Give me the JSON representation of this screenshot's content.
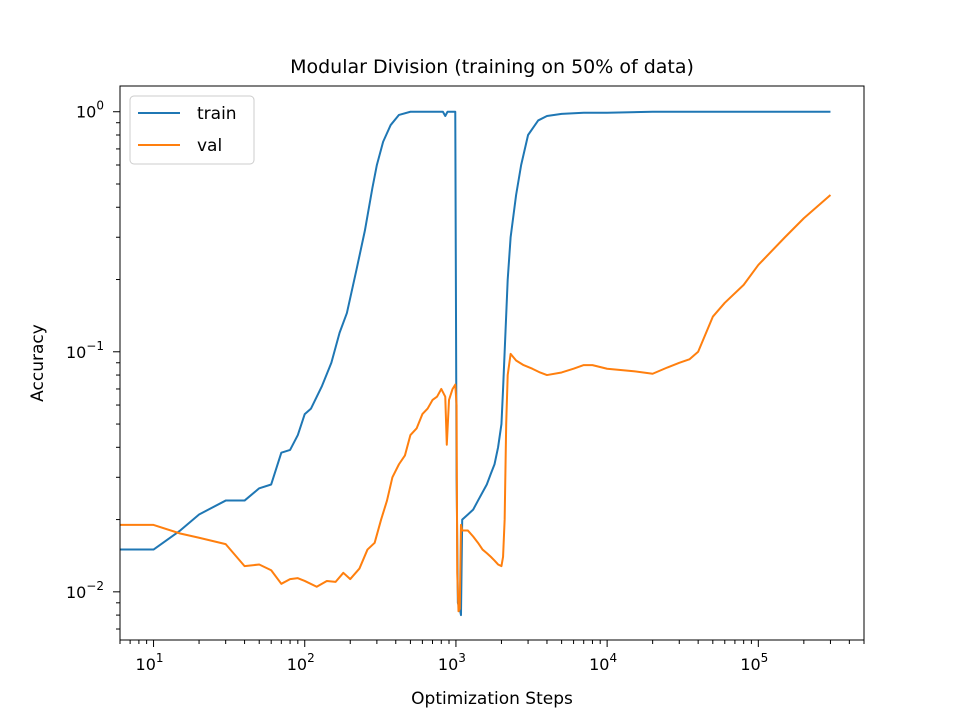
{
  "chart_data": {
    "type": "line",
    "title": "Modular Division (training on 50% of data)",
    "xlabel": "Optimization Steps",
    "ylabel": "Accuracy",
    "xscale": "log",
    "yscale": "log",
    "xlim": [
      6,
      500000
    ],
    "ylim": [
      0.0063,
      1.28
    ],
    "grid": false,
    "legend_position": "top-left",
    "x_ticks": [
      {
        "value": 10,
        "base": "10",
        "exp": "1"
      },
      {
        "value": 100,
        "base": "10",
        "exp": "2"
      },
      {
        "value": 1000,
        "base": "10",
        "exp": "3"
      },
      {
        "value": 10000,
        "base": "10",
        "exp": "4"
      },
      {
        "value": 100000,
        "base": "10",
        "exp": "5"
      }
    ],
    "y_ticks": [
      {
        "value": 1,
        "base": "10",
        "exp": "0"
      },
      {
        "value": 0.1,
        "base": "10",
        "exp": "−1"
      },
      {
        "value": 0.01,
        "base": "10",
        "exp": "−2"
      }
    ],
    "series": [
      {
        "name": "train",
        "color": "#1f77b4",
        "points": [
          [
            6,
            0.015
          ],
          [
            10,
            0.015
          ],
          [
            15,
            0.018
          ],
          [
            20,
            0.021
          ],
          [
            30,
            0.024
          ],
          [
            40,
            0.024
          ],
          [
            50,
            0.027
          ],
          [
            60,
            0.028
          ],
          [
            70,
            0.038
          ],
          [
            80,
            0.039
          ],
          [
            90,
            0.045
          ],
          [
            100,
            0.055
          ],
          [
            110,
            0.058
          ],
          [
            130,
            0.072
          ],
          [
            150,
            0.09
          ],
          [
            170,
            0.12
          ],
          [
            190,
            0.145
          ],
          [
            220,
            0.22
          ],
          [
            250,
            0.32
          ],
          [
            280,
            0.48
          ],
          [
            300,
            0.6
          ],
          [
            330,
            0.75
          ],
          [
            370,
            0.88
          ],
          [
            420,
            0.97
          ],
          [
            500,
            1.0
          ],
          [
            700,
            1.0
          ],
          [
            820,
            1.0
          ],
          [
            850,
            0.96
          ],
          [
            880,
            1.0
          ],
          [
            990,
            1.0
          ],
          [
            1010,
            0.03
          ],
          [
            1030,
            0.009
          ],
          [
            1060,
            0.0085
          ],
          [
            1080,
            0.008
          ],
          [
            1100,
            0.02
          ],
          [
            1200,
            0.021
          ],
          [
            1300,
            0.022
          ],
          [
            1400,
            0.024
          ],
          [
            1500,
            0.026
          ],
          [
            1600,
            0.028
          ],
          [
            1700,
            0.031
          ],
          [
            1800,
            0.034
          ],
          [
            1900,
            0.04
          ],
          [
            2000,
            0.05
          ],
          [
            2050,
            0.07
          ],
          [
            2100,
            0.1
          ],
          [
            2200,
            0.2
          ],
          [
            2300,
            0.3
          ],
          [
            2500,
            0.45
          ],
          [
            2700,
            0.6
          ],
          [
            3000,
            0.8
          ],
          [
            3500,
            0.92
          ],
          [
            4000,
            0.96
          ],
          [
            5000,
            0.98
          ],
          [
            7000,
            0.99
          ],
          [
            10000,
            0.99
          ],
          [
            20000,
            1.0
          ],
          [
            50000,
            1.0
          ],
          [
            100000,
            1.0
          ],
          [
            300000,
            1.0
          ]
        ]
      },
      {
        "name": "val",
        "color": "#ff7f0e",
        "points": [
          [
            6,
            0.019
          ],
          [
            10,
            0.019
          ],
          [
            15,
            0.0175
          ],
          [
            20,
            0.0168
          ],
          [
            30,
            0.0158
          ],
          [
            40,
            0.0128
          ],
          [
            50,
            0.013
          ],
          [
            60,
            0.0123
          ],
          [
            70,
            0.0108
          ],
          [
            80,
            0.0113
          ],
          [
            90,
            0.0114
          ],
          [
            100,
            0.0111
          ],
          [
            120,
            0.0105
          ],
          [
            140,
            0.0111
          ],
          [
            160,
            0.011
          ],
          [
            180,
            0.012
          ],
          [
            200,
            0.0113
          ],
          [
            230,
            0.0125
          ],
          [
            260,
            0.015
          ],
          [
            290,
            0.016
          ],
          [
            320,
            0.02
          ],
          [
            350,
            0.024
          ],
          [
            380,
            0.03
          ],
          [
            420,
            0.034
          ],
          [
            460,
            0.037
          ],
          [
            500,
            0.045
          ],
          [
            550,
            0.048
          ],
          [
            600,
            0.055
          ],
          [
            650,
            0.058
          ],
          [
            700,
            0.063
          ],
          [
            750,
            0.065
          ],
          [
            800,
            0.07
          ],
          [
            850,
            0.065
          ],
          [
            870,
            0.041
          ],
          [
            900,
            0.063
          ],
          [
            950,
            0.07
          ],
          [
            990,
            0.073
          ],
          [
            1010,
            0.06
          ],
          [
            1020,
            0.012
          ],
          [
            1040,
            0.0083
          ],
          [
            1060,
            0.0085
          ],
          [
            1080,
            0.019
          ],
          [
            1100,
            0.018
          ],
          [
            1200,
            0.018
          ],
          [
            1300,
            0.017
          ],
          [
            1400,
            0.016
          ],
          [
            1500,
            0.015
          ],
          [
            1600,
            0.0145
          ],
          [
            1700,
            0.014
          ],
          [
            1800,
            0.0135
          ],
          [
            1900,
            0.013
          ],
          [
            2000,
            0.0128
          ],
          [
            2050,
            0.014
          ],
          [
            2100,
            0.02
          ],
          [
            2150,
            0.05
          ],
          [
            2200,
            0.08
          ],
          [
            2300,
            0.098
          ],
          [
            2500,
            0.092
          ],
          [
            2800,
            0.088
          ],
          [
            3200,
            0.085
          ],
          [
            3600,
            0.082
          ],
          [
            4000,
            0.08
          ],
          [
            5000,
            0.082
          ],
          [
            6000,
            0.085
          ],
          [
            7000,
            0.088
          ],
          [
            8000,
            0.088
          ],
          [
            10000,
            0.085
          ],
          [
            15000,
            0.083
          ],
          [
            20000,
            0.081
          ],
          [
            25000,
            0.086
          ],
          [
            30000,
            0.09
          ],
          [
            35000,
            0.093
          ],
          [
            40000,
            0.1
          ],
          [
            50000,
            0.14
          ],
          [
            60000,
            0.16
          ],
          [
            80000,
            0.19
          ],
          [
            100000,
            0.23
          ],
          [
            150000,
            0.3
          ],
          [
            200000,
            0.36
          ],
          [
            300000,
            0.45
          ]
        ]
      }
    ]
  }
}
